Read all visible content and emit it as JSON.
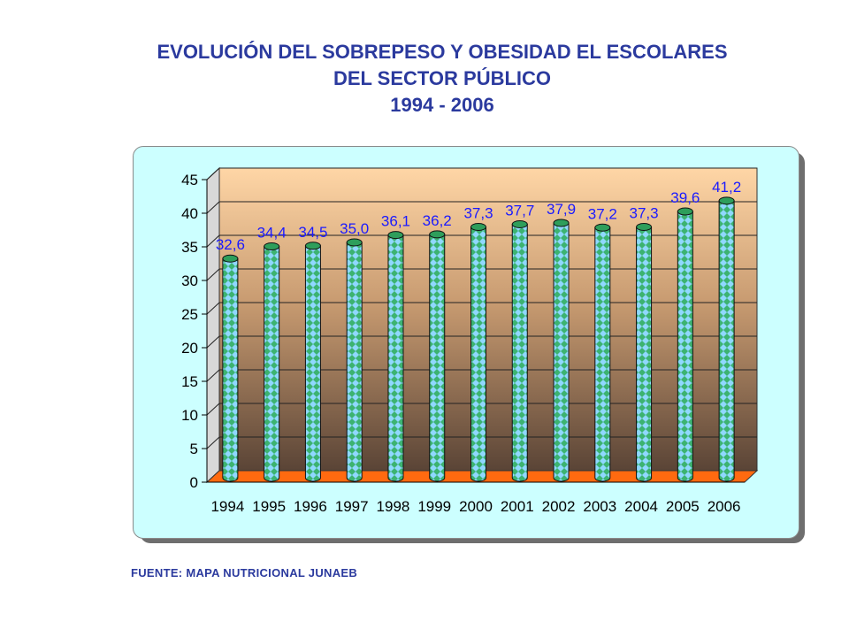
{
  "title": {
    "line1": "EVOLUCIÓN DEL SOBREPESO Y OBESIDAD EL ESCOLARES",
    "line2": "DEL SECTOR PÚBLICO",
    "line3": "1994 - 2006"
  },
  "source": "FUENTE: MAPA NUTRICIONAL JUNAEB",
  "chart_data": {
    "type": "bar",
    "categories": [
      "1994",
      "1995",
      "1996",
      "1997",
      "1998",
      "1999",
      "2000",
      "2001",
      "2002",
      "2003",
      "2004",
      "2005",
      "2006"
    ],
    "values": [
      32.6,
      34.4,
      34.5,
      35.0,
      36.1,
      36.2,
      37.3,
      37.7,
      37.9,
      37.2,
      37.3,
      39.6,
      41.2
    ],
    "data_labels": [
      "32,6",
      "34,4",
      "34,5",
      "35,0",
      "36,1",
      "36,2",
      "37,3",
      "37,7",
      "37,9",
      "37,2",
      "37,3",
      "39,6",
      "41,2"
    ],
    "y_ticks": [
      "0",
      "5",
      "10",
      "15",
      "20",
      "25",
      "30",
      "35",
      "40",
      "45"
    ],
    "ylim": [
      0,
      45
    ],
    "grid": true,
    "legend": "none",
    "colors": {
      "bar": "#3cb371",
      "bar_pattern": "#8fd8ff",
      "floor": "#ff6a10",
      "wall_top": "#ffd6a6",
      "wall_bottom": "#5a4436",
      "label": "#1a1aff"
    }
  }
}
